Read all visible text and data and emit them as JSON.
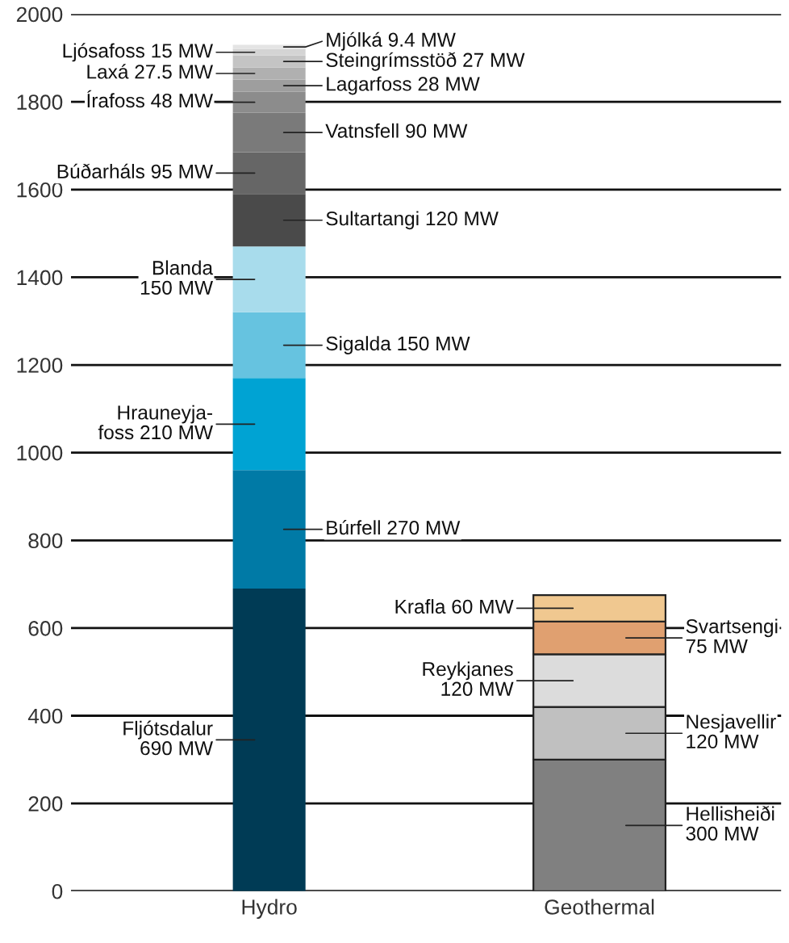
{
  "chart_data": {
    "type": "bar",
    "stacked": true,
    "categories": [
      "Hydro",
      "Geothermal"
    ],
    "ylim": [
      0,
      2000
    ],
    "yticks": [
      0,
      200,
      400,
      600,
      800,
      1000,
      1200,
      1400,
      1600,
      1800,
      2000
    ],
    "grid": "y",
    "series": [
      {
        "name": "Fljótsdalur",
        "color": "#003b55",
        "values": [
          690,
          null
        ],
        "value_labels": [
          "690 MW",
          null
        ]
      },
      {
        "name": "Búrfell",
        "color": "#007aa6",
        "values": [
          270,
          null
        ],
        "value_labels": [
          "270 MW",
          null
        ]
      },
      {
        "name": "Hrauneyja-\nfoss",
        "color": "#00a3d3",
        "values": [
          210,
          null
        ],
        "value_labels": [
          "210 MW",
          null
        ]
      },
      {
        "name": "Sigalda",
        "color": "#66c3e0",
        "values": [
          150,
          null
        ],
        "value_labels": [
          "150 MW",
          null
        ]
      },
      {
        "name": "Blanda",
        "color": "#a8dcec",
        "values": [
          150,
          null
        ],
        "value_labels": [
          "150 MW",
          null
        ]
      },
      {
        "name": "Sultartangi",
        "color": "#4a4a4a",
        "values": [
          120,
          null
        ],
        "value_labels": [
          "120 MW",
          null
        ]
      },
      {
        "name": "Búðarháls",
        "color": "#666666",
        "values": [
          95,
          null
        ],
        "value_labels": [
          "95 MW",
          null
        ]
      },
      {
        "name": "Vatnsfell",
        "color": "#7a7a7a",
        "values": [
          90,
          null
        ],
        "value_labels": [
          "90 MW",
          null
        ]
      },
      {
        "name": "Írafoss",
        "color": "#8c8c8c",
        "values": [
          48,
          null
        ],
        "value_labels": [
          "48 MW",
          null
        ]
      },
      {
        "name": "Lagarfoss",
        "color": "#9e9e9e",
        "values": [
          28,
          null
        ],
        "value_labels": [
          "28 MW",
          null
        ]
      },
      {
        "name": "Laxá",
        "color": "#b0b0b0",
        "values": [
          27.5,
          null
        ],
        "value_labels": [
          "27.5 MW",
          null
        ]
      },
      {
        "name": "Steingrímsstöð",
        "color": "#c4c4c4",
        "values": [
          27,
          null
        ],
        "value_labels": [
          "27 MW",
          null
        ]
      },
      {
        "name": "Ljósafoss",
        "color": "#d4d4d4",
        "values": [
          15,
          null
        ],
        "value_labels": [
          "15 MW",
          null
        ]
      },
      {
        "name": "Mjólká",
        "color": "#e4e4e4",
        "values": [
          9.4,
          null
        ],
        "value_labels": [
          "9.4 MW",
          null
        ]
      },
      {
        "name": "Hellisheiði",
        "color": "#808080",
        "values": [
          null,
          300
        ],
        "value_labels": [
          null,
          "300 MW"
        ]
      },
      {
        "name": "Nesjavellir",
        "color": "#c0c0c0",
        "values": [
          null,
          120
        ],
        "value_labels": [
          null,
          "120 MW"
        ]
      },
      {
        "name": "Reykjanes",
        "color": "#dcdcdc",
        "values": [
          null,
          120
        ],
        "value_labels": [
          null,
          "120 MW"
        ]
      },
      {
        "name": "Svartsengi",
        "color": "#e0a070",
        "values": [
          null,
          75
        ],
        "value_labels": [
          null,
          "75 MW"
        ]
      },
      {
        "name": "Krafla",
        "color": "#f0c890",
        "values": [
          null,
          60
        ],
        "value_labels": [
          null,
          "60 MW"
        ]
      }
    ]
  }
}
